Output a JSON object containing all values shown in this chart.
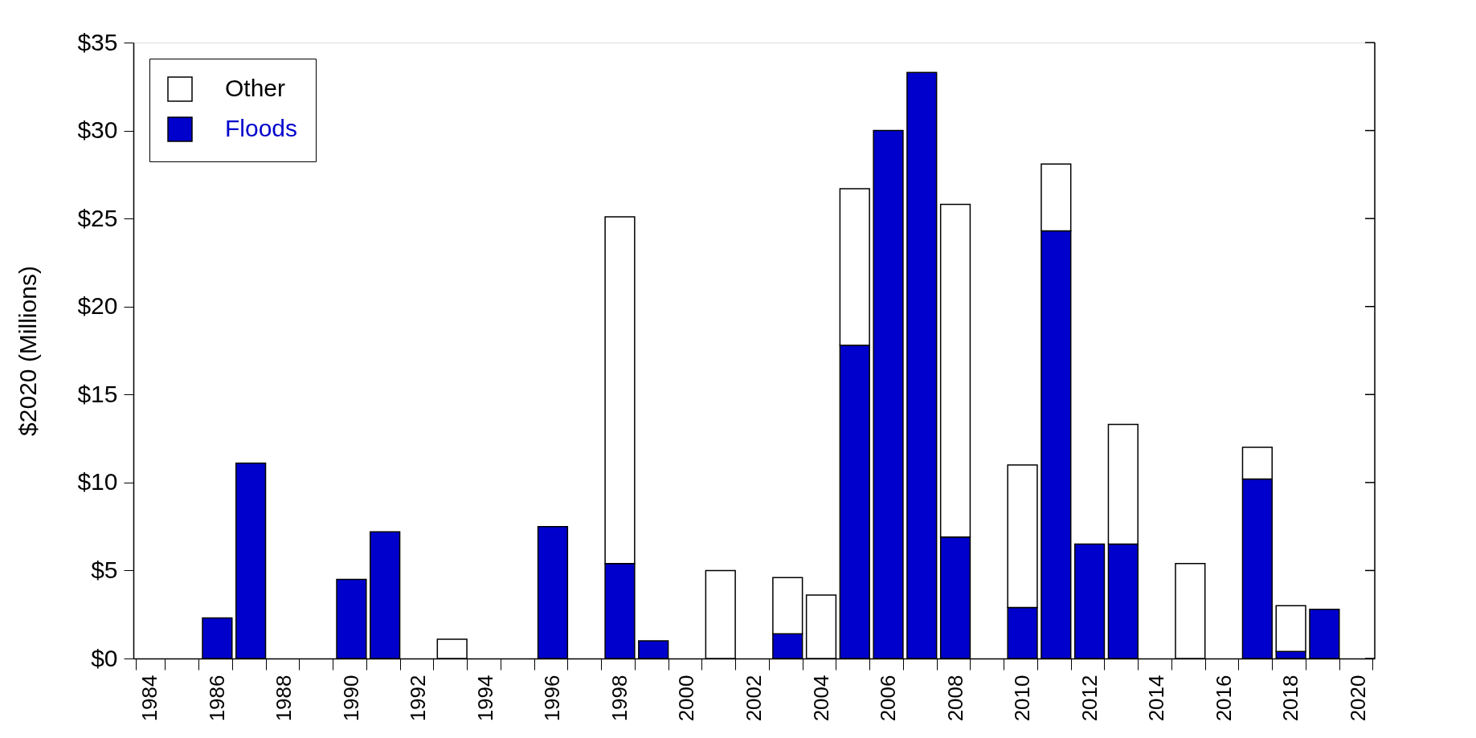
{
  "chart_data": {
    "type": "bar",
    "stacked": true,
    "ylabel": "$2020 (Millions)",
    "categories": [
      "1984",
      null,
      "1986",
      null,
      "1988",
      null,
      "1990",
      null,
      "1992",
      null,
      "1994",
      null,
      "1996",
      null,
      "1998",
      null,
      "2000",
      null,
      "2002",
      null,
      "2004",
      null,
      "2006",
      null,
      "2008",
      null,
      "2010",
      null,
      "2012",
      null,
      "2014",
      null,
      "2016",
      null,
      "2018",
      null,
      "2020"
    ],
    "series": [
      {
        "name": "Floods",
        "color": "#0000cc",
        "values": [
          null,
          null,
          2.3,
          11.1,
          null,
          null,
          4.5,
          7.2,
          null,
          null,
          null,
          null,
          7.5,
          null,
          5.4,
          1.0,
          null,
          null,
          null,
          1.4,
          null,
          17.8,
          30.0,
          33.3,
          6.9,
          null,
          2.9,
          24.3,
          6.5,
          6.5,
          null,
          null,
          null,
          10.2,
          0.4,
          2.8,
          null
        ]
      },
      {
        "name": "Other",
        "color": "#ffffff",
        "values": [
          null,
          null,
          null,
          null,
          null,
          null,
          null,
          null,
          null,
          1.1,
          null,
          null,
          null,
          null,
          19.7,
          null,
          null,
          5.0,
          null,
          3.2,
          3.6,
          8.9,
          null,
          null,
          18.9,
          null,
          8.1,
          3.8,
          null,
          6.8,
          null,
          5.4,
          null,
          1.8,
          2.6,
          null,
          null
        ]
      }
    ],
    "ylim": [
      0,
      35
    ],
    "yticks": [
      {
        "value": 0,
        "label": "$0"
      },
      {
        "value": 5,
        "label": "$5"
      },
      {
        "value": 10,
        "label": "$10"
      },
      {
        "value": 15,
        "label": "$15"
      },
      {
        "value": 20,
        "label": "$20"
      },
      {
        "value": 25,
        "label": "$25"
      },
      {
        "value": 30,
        "label": "$30"
      },
      {
        "value": 35,
        "label": "$35"
      }
    ],
    "grid": false,
    "legend": "top left"
  }
}
